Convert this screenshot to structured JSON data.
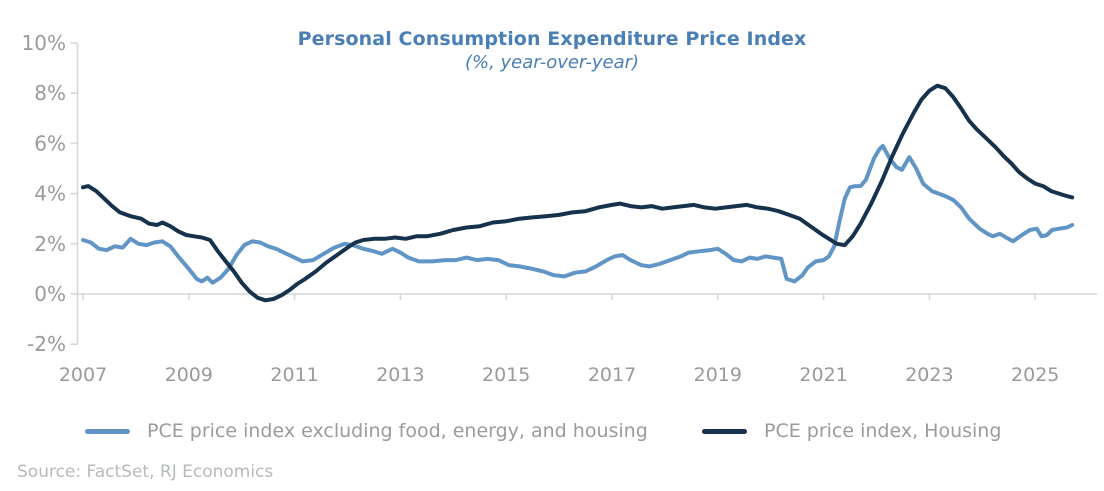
{
  "title": "Personal Consumption Expenditure Price Index",
  "subtitle": "(%, year-over-year)",
  "source": "Source: FactSet, RJ Economics",
  "colors": {
    "title": "#4a7fb6",
    "excl_series": "#6095c6",
    "housing_series": "#16324c",
    "axis_line": "#d4d6d8",
    "axis_text": "#9a9a9a",
    "legend_text": "#9b9b9b",
    "source_text": "#b6babd"
  },
  "legend": {
    "items": [
      {
        "label": "PCE price index excluding food, energy, and housing",
        "color_key": "excl_series"
      },
      {
        "label": "PCE price index, Housing",
        "color_key": "housing_series"
      }
    ]
  },
  "chart_data": {
    "type": "line",
    "title": "Personal Consumption Expenditure Price Index",
    "subtitle": "(%, year-over-year)",
    "xlabel": "",
    "ylabel": "",
    "xlim": [
      2007,
      2025.75
    ],
    "ylim": [
      -2,
      10
    ],
    "x_ticks": [
      2007,
      2009,
      2011,
      2013,
      2015,
      2017,
      2019,
      2021,
      2023,
      2025
    ],
    "y_ticks": [
      -2,
      0,
      2,
      4,
      6,
      8,
      10
    ],
    "y_tick_suffix": "%",
    "grid": "none; x-axis drawn at 0% level",
    "legend_position": "bottom",
    "series": [
      {
        "name": "PCE price index excluding food, energy, and housing",
        "color": "#6095c6",
        "points": [
          [
            2007.0,
            2.15
          ],
          [
            2007.15,
            2.05
          ],
          [
            2007.3,
            1.8
          ],
          [
            2007.45,
            1.75
          ],
          [
            2007.6,
            1.9
          ],
          [
            2007.75,
            1.85
          ],
          [
            2007.9,
            2.2
          ],
          [
            2008.05,
            2.0
          ],
          [
            2008.2,
            1.95
          ],
          [
            2008.35,
            2.05
          ],
          [
            2008.5,
            2.1
          ],
          [
            2008.65,
            1.9
          ],
          [
            2008.8,
            1.5
          ],
          [
            2009.0,
            1.0
          ],
          [
            2009.15,
            0.6
          ],
          [
            2009.25,
            0.5
          ],
          [
            2009.35,
            0.65
          ],
          [
            2009.45,
            0.45
          ],
          [
            2009.6,
            0.65
          ],
          [
            2009.75,
            1.0
          ],
          [
            2009.9,
            1.55
          ],
          [
            2010.05,
            1.95
          ],
          [
            2010.2,
            2.1
          ],
          [
            2010.35,
            2.05
          ],
          [
            2010.5,
            1.9
          ],
          [
            2010.65,
            1.8
          ],
          [
            2010.8,
            1.65
          ],
          [
            2011.0,
            1.45
          ],
          [
            2011.15,
            1.3
          ],
          [
            2011.35,
            1.35
          ],
          [
            2011.55,
            1.6
          ],
          [
            2011.75,
            1.85
          ],
          [
            2011.95,
            2.0
          ],
          [
            2012.1,
            1.95
          ],
          [
            2012.3,
            1.8
          ],
          [
            2012.5,
            1.7
          ],
          [
            2012.65,
            1.6
          ],
          [
            2012.85,
            1.8
          ],
          [
            2013.0,
            1.65
          ],
          [
            2013.15,
            1.45
          ],
          [
            2013.35,
            1.3
          ],
          [
            2013.6,
            1.3
          ],
          [
            2013.85,
            1.35
          ],
          [
            2014.05,
            1.35
          ],
          [
            2014.25,
            1.45
          ],
          [
            2014.45,
            1.35
          ],
          [
            2014.65,
            1.4
          ],
          [
            2014.85,
            1.35
          ],
          [
            2015.05,
            1.15
          ],
          [
            2015.25,
            1.1
          ],
          [
            2015.5,
            1.0
          ],
          [
            2015.7,
            0.9
          ],
          [
            2015.9,
            0.75
          ],
          [
            2016.1,
            0.7
          ],
          [
            2016.3,
            0.85
          ],
          [
            2016.5,
            0.9
          ],
          [
            2016.7,
            1.1
          ],
          [
            2016.9,
            1.35
          ],
          [
            2017.05,
            1.5
          ],
          [
            2017.2,
            1.55
          ],
          [
            2017.35,
            1.35
          ],
          [
            2017.55,
            1.15
          ],
          [
            2017.7,
            1.1
          ],
          [
            2017.9,
            1.2
          ],
          [
            2018.1,
            1.35
          ],
          [
            2018.3,
            1.5
          ],
          [
            2018.45,
            1.65
          ],
          [
            2018.65,
            1.7
          ],
          [
            2018.85,
            1.75
          ],
          [
            2019.0,
            1.8
          ],
          [
            2019.15,
            1.6
          ],
          [
            2019.3,
            1.35
          ],
          [
            2019.45,
            1.3
          ],
          [
            2019.6,
            1.45
          ],
          [
            2019.75,
            1.4
          ],
          [
            2019.9,
            1.5
          ],
          [
            2020.05,
            1.45
          ],
          [
            2020.2,
            1.4
          ],
          [
            2020.3,
            0.6
          ],
          [
            2020.45,
            0.5
          ],
          [
            2020.6,
            0.75
          ],
          [
            2020.7,
            1.05
          ],
          [
            2020.85,
            1.3
          ],
          [
            2021.0,
            1.35
          ],
          [
            2021.1,
            1.5
          ],
          [
            2021.2,
            1.9
          ],
          [
            2021.3,
            2.9
          ],
          [
            2021.4,
            3.8
          ],
          [
            2021.5,
            4.25
          ],
          [
            2021.6,
            4.3
          ],
          [
            2021.7,
            4.3
          ],
          [
            2021.8,
            4.55
          ],
          [
            2021.95,
            5.4
          ],
          [
            2022.05,
            5.75
          ],
          [
            2022.12,
            5.9
          ],
          [
            2022.25,
            5.4
          ],
          [
            2022.38,
            5.05
          ],
          [
            2022.48,
            4.95
          ],
          [
            2022.62,
            5.45
          ],
          [
            2022.75,
            5.0
          ],
          [
            2022.88,
            4.4
          ],
          [
            2023.05,
            4.1
          ],
          [
            2023.3,
            3.9
          ],
          [
            2023.45,
            3.75
          ],
          [
            2023.6,
            3.45
          ],
          [
            2023.75,
            3.0
          ],
          [
            2023.95,
            2.6
          ],
          [
            2024.1,
            2.4
          ],
          [
            2024.2,
            2.3
          ],
          [
            2024.33,
            2.4
          ],
          [
            2024.45,
            2.25
          ],
          [
            2024.58,
            2.1
          ],
          [
            2024.75,
            2.35
          ],
          [
            2024.9,
            2.55
          ],
          [
            2025.03,
            2.6
          ],
          [
            2025.12,
            2.3
          ],
          [
            2025.22,
            2.35
          ],
          [
            2025.32,
            2.55
          ],
          [
            2025.45,
            2.6
          ],
          [
            2025.6,
            2.65
          ],
          [
            2025.7,
            2.75
          ]
        ]
      },
      {
        "name": "PCE price index, Housing",
        "color": "#16324c",
        "points": [
          [
            2007.0,
            4.25
          ],
          [
            2007.1,
            4.3
          ],
          [
            2007.25,
            4.1
          ],
          [
            2007.4,
            3.8
          ],
          [
            2007.55,
            3.5
          ],
          [
            2007.7,
            3.25
          ],
          [
            2007.9,
            3.1
          ],
          [
            2008.1,
            3.0
          ],
          [
            2008.25,
            2.8
          ],
          [
            2008.4,
            2.75
          ],
          [
            2008.5,
            2.85
          ],
          [
            2008.65,
            2.7
          ],
          [
            2008.8,
            2.5
          ],
          [
            2008.95,
            2.35
          ],
          [
            2009.1,
            2.3
          ],
          [
            2009.25,
            2.25
          ],
          [
            2009.4,
            2.15
          ],
          [
            2009.55,
            1.7
          ],
          [
            2009.7,
            1.3
          ],
          [
            2009.85,
            0.9
          ],
          [
            2010.0,
            0.45
          ],
          [
            2010.15,
            0.1
          ],
          [
            2010.3,
            -0.15
          ],
          [
            2010.45,
            -0.25
          ],
          [
            2010.6,
            -0.2
          ],
          [
            2010.75,
            -0.05
          ],
          [
            2010.9,
            0.15
          ],
          [
            2011.05,
            0.4
          ],
          [
            2011.2,
            0.6
          ],
          [
            2011.4,
            0.9
          ],
          [
            2011.6,
            1.25
          ],
          [
            2011.8,
            1.55
          ],
          [
            2012.0,
            1.85
          ],
          [
            2012.15,
            2.05
          ],
          [
            2012.3,
            2.15
          ],
          [
            2012.5,
            2.2
          ],
          [
            2012.7,
            2.2
          ],
          [
            2012.9,
            2.25
          ],
          [
            2013.1,
            2.2
          ],
          [
            2013.3,
            2.3
          ],
          [
            2013.5,
            2.3
          ],
          [
            2013.75,
            2.4
          ],
          [
            2014.0,
            2.55
          ],
          [
            2014.25,
            2.65
          ],
          [
            2014.5,
            2.7
          ],
          [
            2014.75,
            2.85
          ],
          [
            2015.0,
            2.9
          ],
          [
            2015.25,
            3.0
          ],
          [
            2015.5,
            3.05
          ],
          [
            2015.75,
            3.1
          ],
          [
            2016.0,
            3.15
          ],
          [
            2016.25,
            3.25
          ],
          [
            2016.5,
            3.3
          ],
          [
            2016.75,
            3.45
          ],
          [
            2017.0,
            3.55
          ],
          [
            2017.15,
            3.6
          ],
          [
            2017.35,
            3.5
          ],
          [
            2017.55,
            3.45
          ],
          [
            2017.75,
            3.5
          ],
          [
            2017.95,
            3.4
          ],
          [
            2018.15,
            3.45
          ],
          [
            2018.35,
            3.5
          ],
          [
            2018.55,
            3.55
          ],
          [
            2018.75,
            3.45
          ],
          [
            2018.95,
            3.4
          ],
          [
            2019.15,
            3.45
          ],
          [
            2019.35,
            3.5
          ],
          [
            2019.55,
            3.55
          ],
          [
            2019.75,
            3.45
          ],
          [
            2019.95,
            3.4
          ],
          [
            2020.15,
            3.3
          ],
          [
            2020.35,
            3.15
          ],
          [
            2020.55,
            3.0
          ],
          [
            2020.75,
            2.7
          ],
          [
            2020.95,
            2.4
          ],
          [
            2021.1,
            2.2
          ],
          [
            2021.25,
            2.0
          ],
          [
            2021.4,
            1.95
          ],
          [
            2021.55,
            2.3
          ],
          [
            2021.7,
            2.8
          ],
          [
            2021.9,
            3.6
          ],
          [
            2022.1,
            4.5
          ],
          [
            2022.3,
            5.5
          ],
          [
            2022.5,
            6.4
          ],
          [
            2022.7,
            7.2
          ],
          [
            2022.85,
            7.75
          ],
          [
            2023.0,
            8.1
          ],
          [
            2023.15,
            8.3
          ],
          [
            2023.3,
            8.2
          ],
          [
            2023.45,
            7.85
          ],
          [
            2023.6,
            7.4
          ],
          [
            2023.75,
            6.9
          ],
          [
            2023.9,
            6.55
          ],
          [
            2024.1,
            6.15
          ],
          [
            2024.25,
            5.85
          ],
          [
            2024.4,
            5.5
          ],
          [
            2024.55,
            5.2
          ],
          [
            2024.7,
            4.85
          ],
          [
            2024.85,
            4.6
          ],
          [
            2025.0,
            4.4
          ],
          [
            2025.15,
            4.3
          ],
          [
            2025.3,
            4.1
          ],
          [
            2025.45,
            4.0
          ],
          [
            2025.6,
            3.9
          ],
          [
            2025.7,
            3.85
          ]
        ]
      }
    ]
  }
}
